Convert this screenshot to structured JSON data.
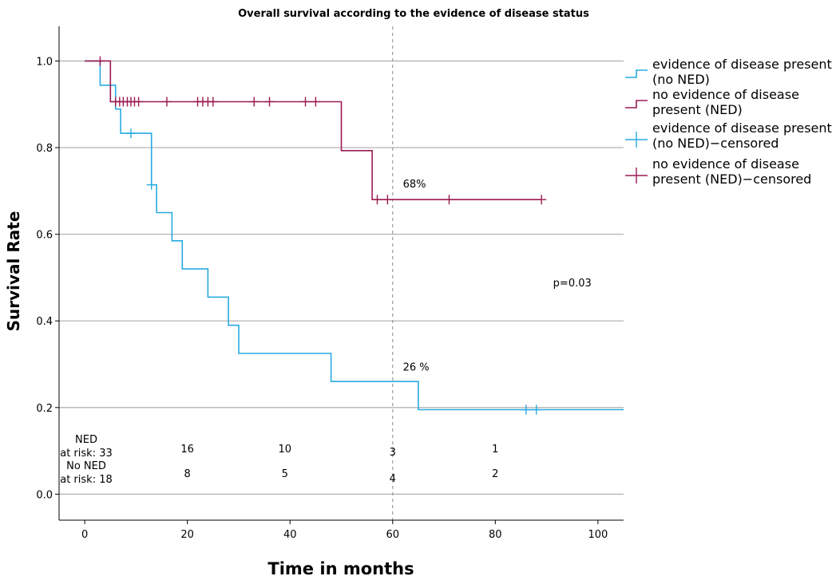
{
  "chart_data": {
    "type": "line",
    "title": "Overall survival according to the evidence of disease status",
    "xlabel": "Time in months",
    "ylabel": "Survival Rate",
    "xlim": [
      -5,
      105
    ],
    "ylim": [
      -0.06,
      1.08
    ],
    "x_ticks": [
      0,
      20,
      40,
      60,
      80,
      100
    ],
    "y_ticks": [
      0.0,
      0.2,
      0.4,
      0.6,
      0.8,
      1.0
    ],
    "y_tick_labels": [
      "0.0",
      "0.2",
      "0.4",
      "0.6",
      "0.8",
      "1.0"
    ],
    "grid": "horizontal",
    "legend_position": "right",
    "reference_line_x": 60,
    "series": [
      {
        "name": "evidence of disease present (no NED)",
        "legend_lines": [
          "evidence of disease present",
          "(no NED)"
        ],
        "color": "#29aae1",
        "style": "step",
        "points": [
          [
            0,
            1.0
          ],
          [
            3,
            1.0
          ],
          [
            3,
            0.944
          ],
          [
            6,
            0.944
          ],
          [
            6,
            0.889
          ],
          [
            7,
            0.889
          ],
          [
            7,
            0.833
          ],
          [
            13,
            0.833
          ],
          [
            13,
            0.714
          ],
          [
            14,
            0.714
          ],
          [
            14,
            0.65
          ],
          [
            17,
            0.65
          ],
          [
            17,
            0.585
          ],
          [
            19,
            0.585
          ],
          [
            19,
            0.52
          ],
          [
            24,
            0.52
          ],
          [
            24,
            0.455
          ],
          [
            28,
            0.455
          ],
          [
            28,
            0.39
          ],
          [
            30,
            0.39
          ],
          [
            30,
            0.325
          ],
          [
            48,
            0.325
          ],
          [
            48,
            0.26
          ],
          [
            65,
            0.26
          ],
          [
            65,
            0.195
          ],
          [
            105,
            0.195
          ]
        ]
      },
      {
        "name": "no evidence of disease present (NED)",
        "legend_lines": [
          "no evidence of disease",
          "present (NED)"
        ],
        "color": "#9b1b52",
        "style": "step",
        "points": [
          [
            0,
            1.0
          ],
          [
            5,
            1.0
          ],
          [
            5,
            0.906
          ],
          [
            50,
            0.906
          ],
          [
            50,
            0.793
          ],
          [
            56,
            0.793
          ],
          [
            56,
            0.68
          ],
          [
            89,
            0.68
          ]
        ]
      },
      {
        "name": "evidence of disease present (no NED)-censored",
        "legend_lines": [
          "evidence of disease present",
          "(no NED)−censored"
        ],
        "color": "#29aae1",
        "style": "censor",
        "points": [
          [
            9,
            0.833
          ],
          [
            13,
            0.714
          ],
          [
            86,
            0.195
          ],
          [
            88,
            0.195
          ]
        ]
      },
      {
        "name": "no evidence of disease present (NED)-censored",
        "legend_lines": [
          "no evidence of disease",
          "present (NED)−censored"
        ],
        "color": "#9b1b52",
        "style": "censor",
        "points": [
          [
            3,
            1.0
          ],
          [
            6,
            0.906
          ],
          [
            6.8,
            0.906
          ],
          [
            7.5,
            0.906
          ],
          [
            8.3,
            0.906
          ],
          [
            9,
            0.906
          ],
          [
            9.7,
            0.906
          ],
          [
            10.5,
            0.906
          ],
          [
            16,
            0.906
          ],
          [
            22,
            0.906
          ],
          [
            23,
            0.906
          ],
          [
            24,
            0.906
          ],
          [
            25,
            0.906
          ],
          [
            33,
            0.906
          ],
          [
            36,
            0.906
          ],
          [
            43,
            0.906
          ],
          [
            45,
            0.906
          ],
          [
            57,
            0.68
          ],
          [
            59,
            0.68
          ],
          [
            71,
            0.68
          ],
          [
            89,
            0.68
          ]
        ]
      }
    ],
    "annotations": [
      {
        "text": "68%",
        "x": 62,
        "y": 0.708
      },
      {
        "text": "26 %",
        "x": 62,
        "y": 0.285
      },
      {
        "text": "p=0.03",
        "x": 95,
        "y": 0.48
      }
    ],
    "at_risk": {
      "ned_label": [
        "NED",
        "at risk: 33"
      ],
      "no_ned_label": [
        "No NED",
        "at risk: 18"
      ],
      "ned_counts": [
        {
          "x": 20,
          "value": "16"
        },
        {
          "x": 39,
          "value": "10"
        },
        {
          "x": 60,
          "value": "3"
        },
        {
          "x": 80,
          "value": "1"
        }
      ],
      "no_ned_counts": [
        {
          "x": 20,
          "value": "8"
        },
        {
          "x": 39,
          "value": "5"
        },
        {
          "x": 60,
          "value": "4"
        },
        {
          "x": 80,
          "value": "2"
        }
      ]
    }
  }
}
